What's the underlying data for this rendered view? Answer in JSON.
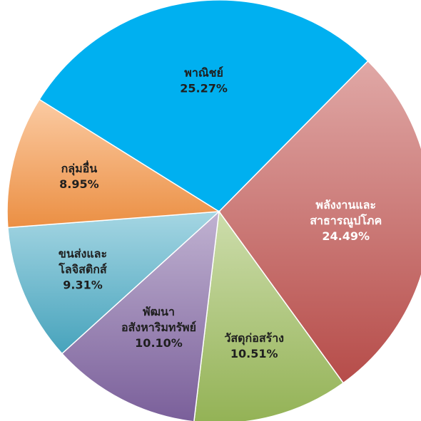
{
  "chart_data": {
    "type": "pie",
    "slices": [
      {
        "lines": [
          "พาณิชย์"
        ],
        "value_label": "25.27%",
        "value": 25.27,
        "color": "#00B0F0"
      },
      {
        "lines": [
          "พลังงานและ",
          "สาธารณูปโภค"
        ],
        "value_label": "24.49%",
        "value": 24.49,
        "color": "#C0504D"
      },
      {
        "lines": [
          "วัสดุก่อสร้าง"
        ],
        "value_label": "10.51%",
        "value": 10.51,
        "color": "#9BBB59"
      },
      {
        "lines": [
          "พัฒนา",
          "อสังหาริมทรัพย์"
        ],
        "value_label": "10.10%",
        "value": 10.1,
        "color": "#8064A2"
      },
      {
        "lines": [
          "ขนส่งและ",
          "โลจิสติกส์"
        ],
        "value_label": "9.31%",
        "value": 9.31,
        "color": "#4BACC6"
      },
      {
        "lines": [
          "กลุ่มอื่น"
        ],
        "value_label": "8.95%",
        "value": 8.95,
        "color": "#F79646"
      }
    ],
    "start_angle_deg": -58
  }
}
